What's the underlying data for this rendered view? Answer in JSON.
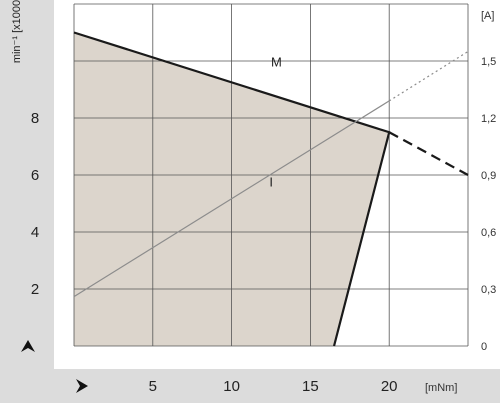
{
  "chart_data": {
    "type": "line",
    "x_unit": "[mNm]",
    "y_unit_left": "min⁻¹ [x1000]",
    "y_unit_right": "[A]",
    "x_ticks": [
      "5",
      "10",
      "15",
      "20"
    ],
    "x_range": [
      0,
      25
    ],
    "y_left_ticks": [
      "2",
      "4",
      "6",
      "8"
    ],
    "y_left_range": [
      0,
      12
    ],
    "y_right_ticks": [
      "0",
      "0,3",
      "0,6",
      "0,9",
      "1,2",
      "1,5"
    ],
    "y_right_range": [
      0,
      1.8
    ],
    "grid": true,
    "series": [
      {
        "name": "M",
        "axis": "left",
        "color": "#1a1a1a",
        "style": "solid",
        "points": [
          [
            0,
            11
          ],
          [
            20,
            7.5
          ],
          [
            16.5,
            0
          ]
        ]
      },
      {
        "name": "M",
        "axis": "left",
        "color": "#1a1a1a",
        "style": "dashed",
        "points": [
          [
            20,
            7.5
          ],
          [
            25,
            6
          ]
        ]
      },
      {
        "name": "I",
        "axis": "right",
        "color": "#8c8c8c",
        "style": "solid",
        "points": [
          [
            0,
            0.26
          ],
          [
            20,
            1.29
          ]
        ]
      },
      {
        "name": "I",
        "axis": "right",
        "color": "#8c8c8c",
        "style": "dotted",
        "points": [
          [
            20,
            1.29
          ],
          [
            25,
            1.55
          ]
        ]
      }
    ],
    "operating_region": {
      "fill": "#dcd5cc",
      "points": [
        [
          0,
          0
        ],
        [
          0,
          11
        ],
        [
          20,
          7.5
        ],
        [
          16.5,
          0
        ]
      ]
    },
    "labels": [
      {
        "text": "M",
        "x": 12.5,
        "y": 9.8,
        "axis": "left"
      },
      {
        "text": "I",
        "x": 12.4,
        "y": 0.84,
        "axis": "right"
      }
    ],
    "arrow_up_icon": "arrow-up-icon",
    "arrow_right_icon": "arrow-right-icon",
    "colors": {
      "axis_band": "#dcdcdc",
      "grid": "#555555"
    }
  }
}
